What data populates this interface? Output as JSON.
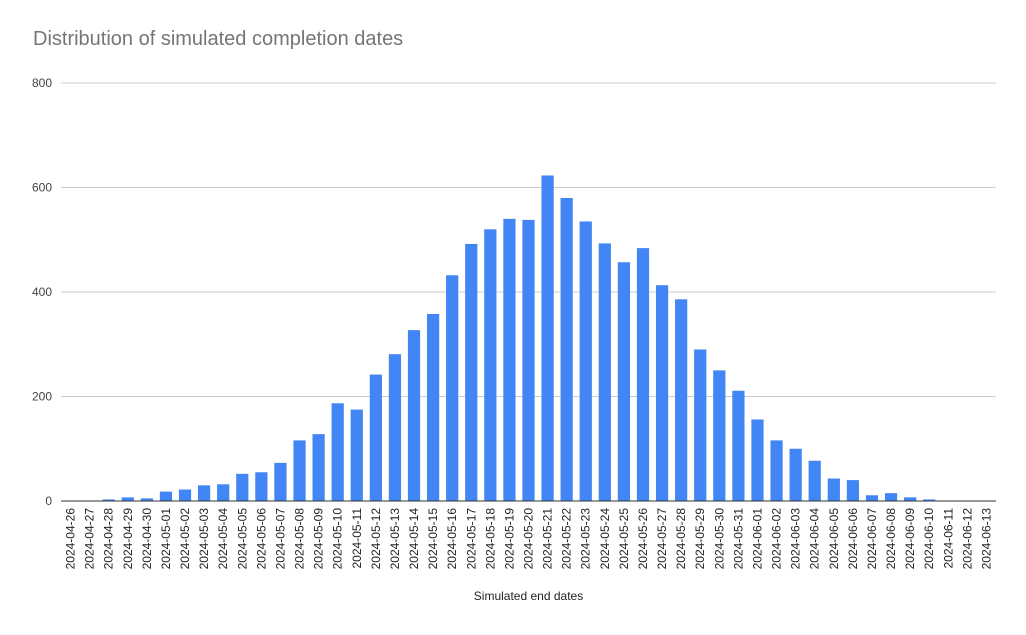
{
  "chart_data": {
    "type": "bar",
    "title": "Distribution of simulated completion dates",
    "xlabel": "Simulated end dates",
    "ylabel": "",
    "ylim": [
      0,
      800
    ],
    "yticks": [
      0,
      200,
      400,
      600,
      800
    ],
    "grid": true,
    "legend": "none",
    "bar_color": "#4285f4",
    "categories": [
      "2024-04-26",
      "2024-04-27",
      "2024-04-28",
      "2024-04-29",
      "2024-04-30",
      "2024-05-01",
      "2024-05-02",
      "2024-05-03",
      "2024-05-04",
      "2024-05-05",
      "2024-05-06",
      "2024-05-07",
      "2024-05-08",
      "2024-05-09",
      "2024-05-10",
      "2024-05-11",
      "2024-05-12",
      "2024-05-13",
      "2024-05-14",
      "2024-05-15",
      "2024-05-16",
      "2024-05-17",
      "2024-05-18",
      "2024-05-19",
      "2024-05-20",
      "2024-05-21",
      "2024-05-22",
      "2024-05-23",
      "2024-05-24",
      "2024-05-25",
      "2024-05-26",
      "2024-05-27",
      "2024-05-28",
      "2024-05-29",
      "2024-05-30",
      "2024-05-31",
      "2024-06-01",
      "2024-06-02",
      "2024-06-03",
      "2024-06-04",
      "2024-06-05",
      "2024-06-06",
      "2024-06-07",
      "2024-06-08",
      "2024-06-09",
      "2024-06-10",
      "2024-06-11",
      "2024-06-12",
      "2024-06-13"
    ],
    "values": [
      1,
      1,
      3,
      7,
      5,
      18,
      22,
      30,
      32,
      52,
      55,
      73,
      116,
      128,
      187,
      175,
      242,
      281,
      327,
      358,
      432,
      492,
      520,
      540,
      538,
      623,
      580,
      535,
      493,
      457,
      484,
      413,
      386,
      290,
      250,
      211,
      156,
      116,
      100,
      77,
      43,
      40,
      11,
      15,
      7,
      3,
      1,
      1,
      1
    ]
  }
}
